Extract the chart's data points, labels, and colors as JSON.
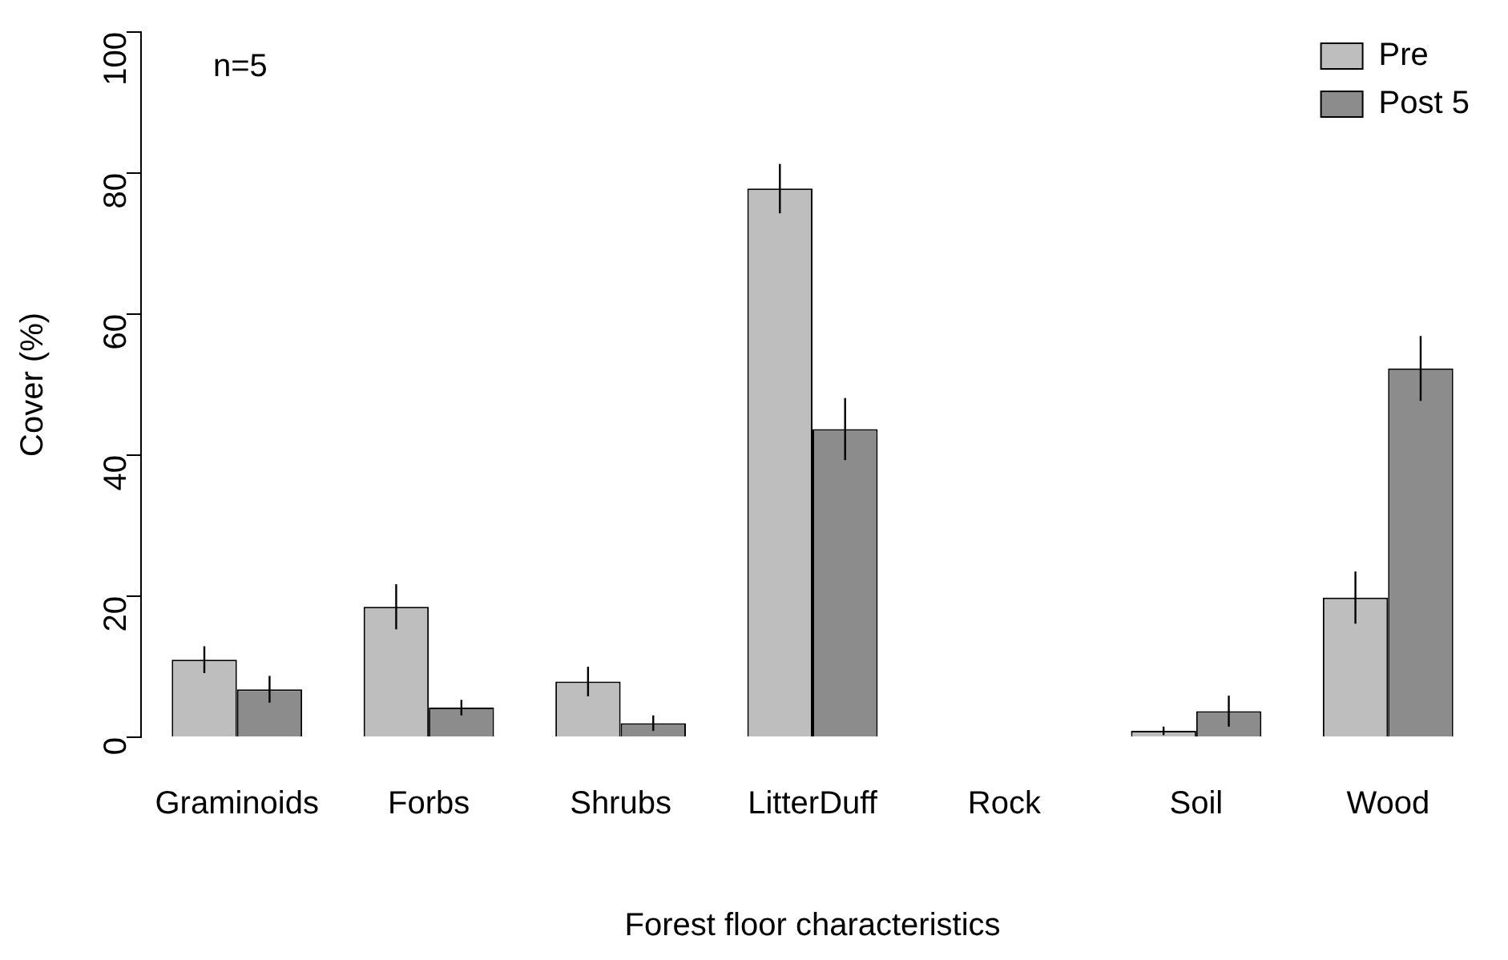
{
  "chart_data": {
    "type": "bar",
    "xlabel": "Forest floor characteristics",
    "ylabel": "Cover (%)",
    "categories": [
      "Graminoids",
      "Forbs",
      "Shrubs",
      "LitterDuff",
      "Rock",
      "Soil",
      "Wood"
    ],
    "series": [
      {
        "name": "Pre",
        "color": "#bebebe",
        "values": [
          11,
          18.5,
          7.9,
          77.8,
          0,
          0.9,
          19.8
        ],
        "errors": [
          1.9,
          3.2,
          2.1,
          3.5,
          0,
          0.6,
          3.7
        ]
      },
      {
        "name": "Post 5",
        "color": "#8c8c8c",
        "values": [
          6.8,
          4.2,
          2,
          43.7,
          0,
          3.7,
          52.3
        ],
        "errors": [
          1.9,
          1.1,
          1.1,
          4.4,
          0,
          2.2,
          4.6
        ]
      }
    ],
    "ylim": [
      0,
      100
    ],
    "yticks": [
      0,
      20,
      40,
      60,
      80,
      100
    ],
    "grid": false,
    "legend": "top right",
    "annotations": [
      "n=5"
    ]
  }
}
